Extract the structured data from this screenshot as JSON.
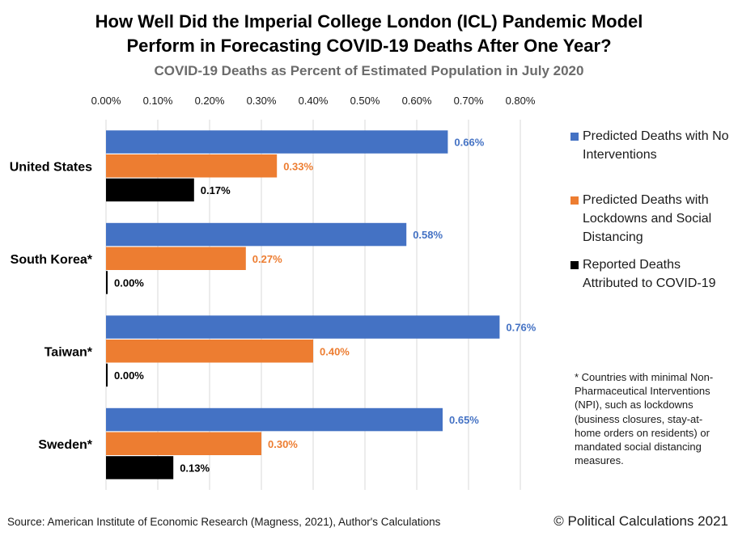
{
  "title_line1": "How Well Did the Imperial College London (ICL) Pandemic Model",
  "title_line2": "Perform in Forecasting COVID-19 Deaths After One Year?",
  "subtitle": "COVID-19 Deaths as Percent of Estimated Population  in July 2020",
  "chart_data": {
    "type": "bar",
    "orientation": "horizontal",
    "title": "How Well Did the Imperial College London (ICL) Pandemic Model Perform in Forecasting COVID-19 Deaths After One Year?",
    "subtitle": "COVID-19 Deaths as Percent of Estimated Population  in July 2020",
    "categories": [
      "United States",
      "South Korea*",
      "Taiwan*",
      "Sweden*"
    ],
    "xlim": [
      0,
      0.8
    ],
    "xticks": [
      0,
      0.1,
      0.2,
      0.3,
      0.4,
      0.5,
      0.6,
      0.7,
      0.8
    ],
    "xtick_labels": [
      "0.00%",
      "0.10%",
      "0.20%",
      "0.30%",
      "0.40%",
      "0.50%",
      "0.60%",
      "0.70%",
      "0.80%"
    ],
    "axis_position": "top",
    "grid": true,
    "legend_position": "right",
    "series": [
      {
        "name": "Predicted Deaths with No Interventions",
        "color": "#4472C4",
        "values": [
          0.66,
          0.58,
          0.76,
          0.65
        ],
        "labels": [
          "0.66%",
          "0.58%",
          "0.76%",
          "0.65%"
        ]
      },
      {
        "name": "Predicted Deaths with Lockdowns and Social Distancing",
        "color": "#ED7D31",
        "values": [
          0.33,
          0.27,
          0.4,
          0.3
        ],
        "labels": [
          "0.33%",
          "0.27%",
          "0.40%",
          "0.30%"
        ]
      },
      {
        "name": "Reported Deaths Attributed to COVID-19",
        "color": "#000000",
        "values": [
          0.17,
          0.0,
          0.0,
          0.13
        ],
        "labels": [
          "0.17%",
          "0.00%",
          "0.00%",
          "0.13%"
        ]
      }
    ]
  },
  "legend": [
    {
      "label": "Predicted Deaths with No Interventions",
      "color": "#4472C4"
    },
    {
      "label": "Predicted Deaths with Lockdowns and Social Distancing",
      "color": "#ED7D31"
    },
    {
      "label": "Reported Deaths Attributed to COVID-19",
      "color": "#000000"
    }
  ],
  "footnote": "* Countries with minimal Non-Pharmaceutical Interventions (NPI), such as lockdowns (business closures, stay-at-home orders on residents) or mandated social distancing measures.",
  "source": "Source: American Institute of Economic Research (Magness, 2021), Author's Calculations",
  "copyright": "© Political Calculations 2021"
}
